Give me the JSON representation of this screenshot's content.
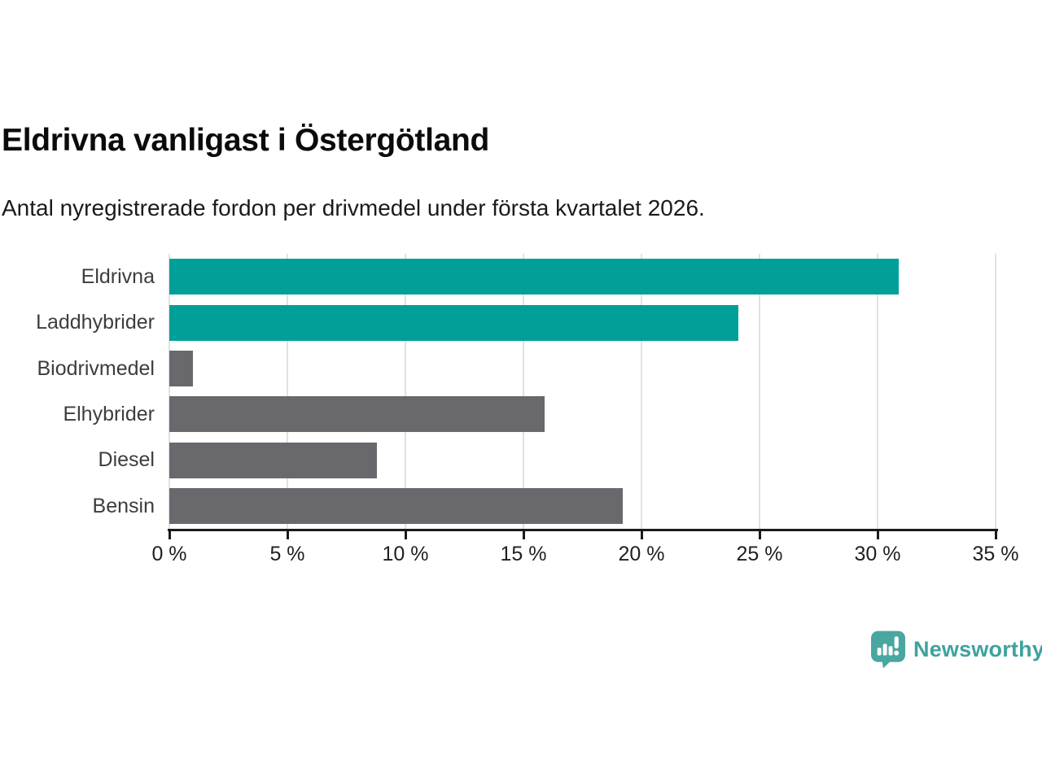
{
  "header": {
    "title": "Eldrivna vanligast i Östergötland",
    "subtitle": "Antal nyregistrerade fordon per drivmedel under första kvartalet 2026."
  },
  "chart_data": {
    "type": "bar",
    "orientation": "horizontal",
    "title": "Eldrivna vanligast i Östergötland",
    "subtitle": "Antal nyregistrerade fordon per drivmedel under första kvartalet 2026.",
    "categories": [
      "Eldrivna",
      "Laddhybrider",
      "Biodrivmedel",
      "Elhybrider",
      "Diesel",
      "Bensin"
    ],
    "values": [
      30.9,
      24.1,
      1.0,
      15.9,
      8.8,
      19.2
    ],
    "unit": "%",
    "xlim": [
      0,
      35
    ],
    "x_ticks": [
      0,
      5,
      10,
      15,
      20,
      25,
      30,
      35
    ],
    "x_tick_labels": [
      "0 %",
      "5 %",
      "10 %",
      "15 %",
      "20 %",
      "25 %",
      "30 %",
      "35 %"
    ],
    "grid": true,
    "legend": false,
    "bar_colors": [
      "teal",
      "teal",
      "gray",
      "gray",
      "gray",
      "gray"
    ]
  },
  "colors": {
    "teal": "#00A099",
    "gray": "#69686D",
    "grid": "#E1E1E1",
    "axis": "#1A1A1A",
    "tick_label": "#1F1F1F",
    "category_label": "#3D3D3D",
    "title": "#0B0B0B",
    "subtitle": "#1A1A1A",
    "logo_icon": "#4AA6A1",
    "logo_text": "#3DA39E"
  },
  "branding": {
    "name": "Newsworthy"
  }
}
